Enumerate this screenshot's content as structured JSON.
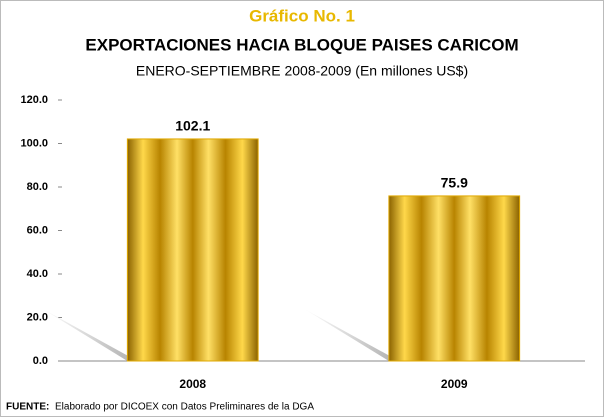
{
  "chart_data": {
    "type": "bar",
    "kicker": "Gráfico No. 1",
    "title": "EXPORTACIONES HACIA BLOQUE PAISES CARICOM",
    "subtitle": "ENERO-SEPTIEMBRE 2008-2009 (En millones US$)",
    "categories": [
      "2008",
      "2009"
    ],
    "values": [
      102.1,
      75.9
    ],
    "color": "#e0a800",
    "ylim": [
      0,
      120
    ],
    "yticks": [
      {
        "value": 0,
        "label": "0.0"
      },
      {
        "value": 20,
        "label": "20.0"
      },
      {
        "value": 40,
        "label": "40.0"
      },
      {
        "value": 60,
        "label": "60.0"
      },
      {
        "value": 80,
        "label": "80.0"
      },
      {
        "value": 100,
        "label": "100.0"
      },
      {
        "value": 120,
        "label": "120.0"
      }
    ],
    "grid": false,
    "source_label": "FUENTE:",
    "source": "Elaborado por DICOEX con Datos Preliminares de la DGA"
  }
}
